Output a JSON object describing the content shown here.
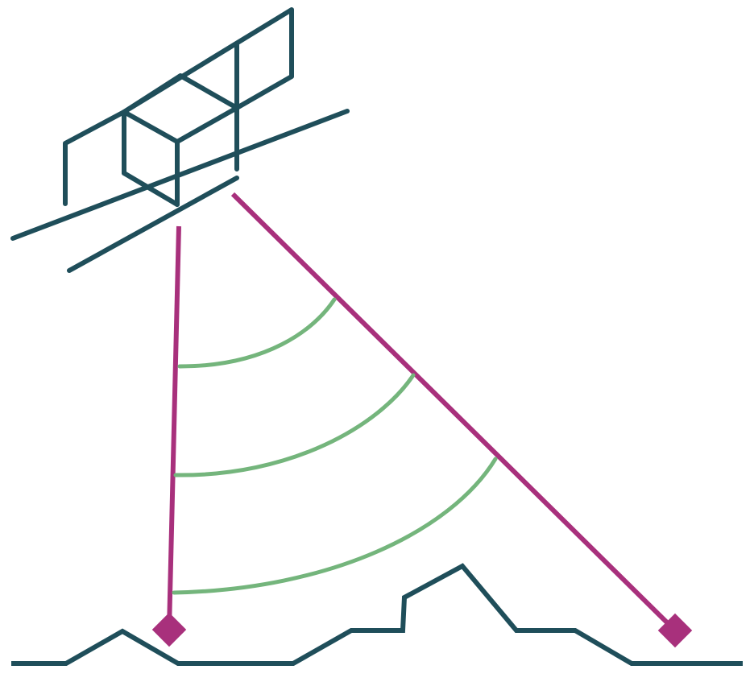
{
  "colors": {
    "background": "#ffffff",
    "structure": "#1f4e5a",
    "beam": "#a8307c",
    "wavefront": "#74b57c"
  },
  "elements": {
    "satellite": "satellite-icon",
    "terrain": "terrain-profile",
    "beams": [
      "nadir-beam",
      "oblique-beam"
    ],
    "targets": [
      "nadir-target-icon",
      "oblique-target-icon"
    ],
    "wavefront_count": 3
  }
}
